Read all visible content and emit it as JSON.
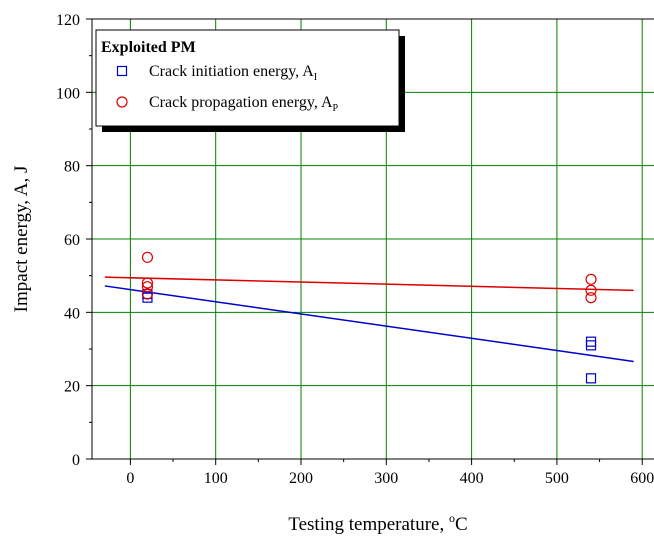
{
  "chart_data": {
    "type": "scatter",
    "title": "",
    "xlabel": "Testing temperature, ",
    "xlabel_sup": "o",
    "xlabel_unit": "C",
    "ylabel": "Impact energy, A, J",
    "xlim": [
      -45,
      615
    ],
    "ylim": [
      0,
      120
    ],
    "xticks": [
      0,
      100,
      200,
      300,
      400,
      500,
      600
    ],
    "yticks": [
      0,
      20,
      40,
      60,
      80,
      100,
      120
    ],
    "grid": true,
    "grid_color": "#008000",
    "legend": {
      "placement": "top-left",
      "title": "Exploited PM",
      "entries": [
        {
          "label": "Crack initiation energy, A",
          "sub": "I",
          "marker": "square",
          "color": "#0000cc"
        },
        {
          "label": "Crack propagation energy, A",
          "sub": "P",
          "marker": "circle",
          "color": "#dd0000"
        }
      ]
    },
    "series": [
      {
        "name": "Crack initiation energy, AI",
        "marker": "square",
        "color": "#0000cc",
        "points": [
          [
            20,
            44
          ],
          [
            20,
            45
          ],
          [
            540,
            32
          ],
          [
            540,
            31
          ],
          [
            540,
            22
          ]
        ],
        "fit": [
          [
            -30,
            47.2
          ],
          [
            590,
            26.6
          ]
        ]
      },
      {
        "name": "Crack propagation energy, AP",
        "marker": "circle",
        "color": "#dd0000",
        "points": [
          [
            20,
            55
          ],
          [
            20,
            48
          ],
          [
            20,
            47
          ],
          [
            20,
            45
          ],
          [
            540,
            49
          ],
          [
            540,
            46
          ],
          [
            540,
            44
          ]
        ],
        "fit": [
          [
            -30,
            49.6
          ],
          [
            590,
            46
          ]
        ]
      }
    ]
  }
}
